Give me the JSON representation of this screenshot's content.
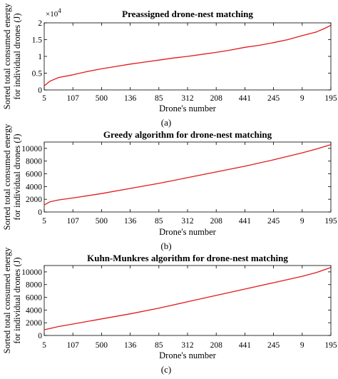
{
  "chart_data": [
    {
      "type": "line",
      "caption": "(a)",
      "title": "Preassigned drone-nest matching",
      "xlabel": "Drone's number",
      "ylabel": [
        "Sorted total consumed energy",
        "for individual drones (J)"
      ],
      "y_multiplier": "×10",
      "y_multiplier_exp": "4",
      "xticks": [
        "5",
        "107",
        "500",
        "136",
        "85",
        "312",
        "208",
        "441",
        "245",
        "9",
        "195"
      ],
      "yticks": [
        {
          "value": 0,
          "label": "0"
        },
        {
          "value": 5000,
          "label": "0.5"
        },
        {
          "value": 10000,
          "label": "1"
        },
        {
          "value": 15000,
          "label": "1.5"
        },
        {
          "value": 20000,
          "label": "2"
        }
      ],
      "ylim": [
        0,
        20000
      ],
      "line_color": "#e31a1c",
      "series": [
        {
          "x": [
            0,
            0.02,
            0.05,
            0.1,
            0.15,
            0.2,
            0.25,
            0.3,
            0.35,
            0.4,
            0.45,
            0.5,
            0.55,
            0.6,
            0.65,
            0.7,
            0.75,
            0.8,
            0.85,
            0.9,
            0.95,
            0.98,
            1.0
          ],
          "values": [
            1200,
            2600,
            3700,
            4500,
            5500,
            6300,
            7000,
            7700,
            8300,
            8900,
            9500,
            10000,
            10600,
            11200,
            11900,
            12700,
            13300,
            14100,
            15000,
            16200,
            17300,
            18400,
            19300
          ]
        }
      ]
    },
    {
      "type": "line",
      "caption": "(b)",
      "title": "Greedy algorithm for drone-nest matching",
      "xlabel": "Drone's number",
      "ylabel": [
        "Sorted total consumed energy",
        "for individual drones (J)"
      ],
      "xticks": [
        "5",
        "107",
        "500",
        "136",
        "85",
        "312",
        "208",
        "441",
        "245",
        "9",
        "195"
      ],
      "yticks": [
        {
          "value": 0,
          "label": "0"
        },
        {
          "value": 2000,
          "label": "2000"
        },
        {
          "value": 4000,
          "label": "4000"
        },
        {
          "value": 6000,
          "label": "6000"
        },
        {
          "value": 8000,
          "label": "8000"
        },
        {
          "value": 10000,
          "label": "10000"
        }
      ],
      "ylim": [
        0,
        11000
      ],
      "line_color": "#e31a1c",
      "series": [
        {
          "x": [
            0,
            0.02,
            0.05,
            0.1,
            0.2,
            0.3,
            0.4,
            0.5,
            0.6,
            0.7,
            0.8,
            0.9,
            0.95,
            1.0
          ],
          "values": [
            1100,
            1600,
            1900,
            2200,
            2900,
            3700,
            4500,
            5400,
            6300,
            7200,
            8200,
            9300,
            9900,
            10600
          ]
        }
      ]
    },
    {
      "type": "line",
      "caption": "(c)",
      "title": "Kuhn-Munkres algorithm for drone-nest matching",
      "xlabel": "Drone's number",
      "ylabel": [
        "Sorted total consumed energy",
        "for individual drones (J)"
      ],
      "xticks": [
        "5",
        "107",
        "500",
        "136",
        "85",
        "312",
        "208",
        "441",
        "245",
        "9",
        "195"
      ],
      "yticks": [
        {
          "value": 0,
          "label": "0"
        },
        {
          "value": 2000,
          "label": "2000"
        },
        {
          "value": 4000,
          "label": "4000"
        },
        {
          "value": 6000,
          "label": "6000"
        },
        {
          "value": 8000,
          "label": "8000"
        },
        {
          "value": 10000,
          "label": "10000"
        }
      ],
      "ylim": [
        0,
        11000
      ],
      "line_color": "#e31a1c",
      "series": [
        {
          "x": [
            0,
            0.02,
            0.05,
            0.1,
            0.2,
            0.3,
            0.4,
            0.5,
            0.6,
            0.7,
            0.8,
            0.9,
            0.95,
            1.0
          ],
          "values": [
            900,
            1100,
            1400,
            1800,
            2600,
            3400,
            4300,
            5300,
            6300,
            7300,
            8300,
            9300,
            9900,
            10700
          ]
        }
      ]
    }
  ]
}
